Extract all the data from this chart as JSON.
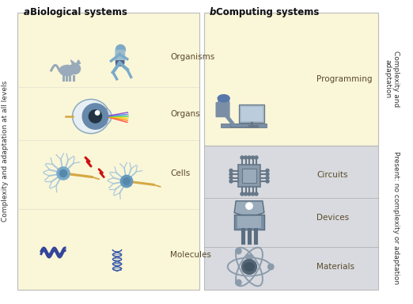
{
  "title_a": "Biological systems",
  "title_b": "Computing systems",
  "bio_labels": [
    "Organisms",
    "Organs",
    "Cells",
    "Molecules"
  ],
  "comp_labels": [
    "Programming",
    "Circuits",
    "Devices",
    "Materials"
  ],
  "left_ylabel": "Complexity and adaptation at all levels",
  "right_label_top": "Complexity and\nadaptation",
  "right_label_bottom": "Present: no complexity or adaptation",
  "bg_yellow": "#FAF6D8",
  "bg_grey": "#D8DADF",
  "border_color": "#BBBBBB",
  "text_color": "#333333",
  "label_color": "#5A4A2A",
  "title_color": "#111111",
  "icon_blue_light": "#A8C8DC",
  "icon_blue_mid": "#7AABCC",
  "icon_blue_dark": "#5588AA",
  "icon_grey": "#8899AA",
  "icon_grey_dark": "#667788",
  "icon_grey_body": "#8A9BAC",
  "icon_yellow": "#D4A843",
  "icon_blue_person": "#7AAABB"
}
